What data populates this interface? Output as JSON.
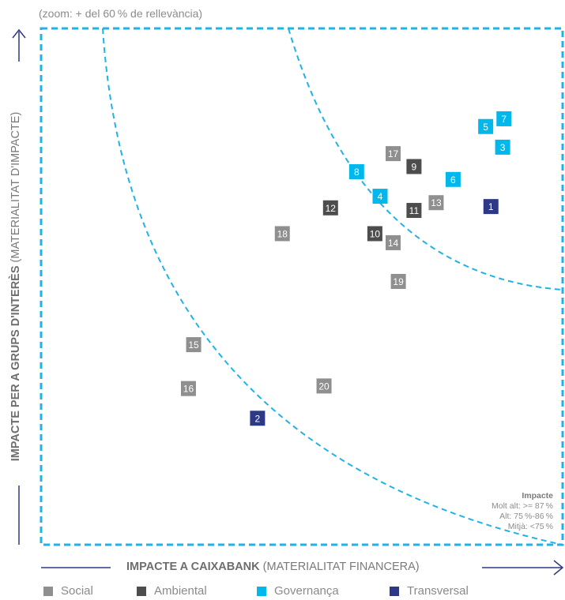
{
  "note": "(zoom: + del 60 % de rellevància)",
  "y_axis": {
    "strong": "IMPACTE PER A GRUPS D'INTERÈS",
    "light": "(MATERIALITAT D'IMPACTE)"
  },
  "x_axis": {
    "strong": "IMPACTE A CAIXABANK",
    "light": "(MATERIALITAT FINANCERA)"
  },
  "impact_legend": {
    "title": "Impacte",
    "lines": [
      "Molt alt: >= 87 %",
      "Alt: 75 %-86 %",
      "Mitjà: <75 %"
    ]
  },
  "legend": [
    {
      "key": "social",
      "label": "Social",
      "color": "#8f8f8f"
    },
    {
      "key": "ambiental",
      "label": "Ambiental",
      "color": "#4d4d4d"
    },
    {
      "key": "governanca",
      "label": "Governança",
      "color": "#00b8ec"
    },
    {
      "key": "transversal",
      "label": "Transversal",
      "color": "#2d3987"
    }
  ],
  "colors": {
    "frame": "#1fb3e8",
    "axis_arrow": "#2d3987",
    "threshold_curve": "#1fb3e8"
  },
  "chart_data": {
    "type": "scatter",
    "xlabel": "IMPACTE A CAIXABANK (MATERIALITAT FINANCERA)",
    "ylabel": "IMPACTE PER A GRUPS D'INTERÈS (MATERIALITAT D'IMPACTE)",
    "xlim": [
      60,
      100
    ],
    "ylim": [
      60,
      100
    ],
    "series": [
      {
        "name": "Social",
        "points": [
          {
            "label": "13",
            "x": 90.3,
            "y": 86.5
          },
          {
            "label": "14",
            "x": 87.0,
            "y": 83.4
          },
          {
            "label": "15",
            "x": 71.7,
            "y": 75.5
          },
          {
            "label": "16",
            "x": 71.3,
            "y": 72.1
          },
          {
            "label": "17",
            "x": 87.0,
            "y": 90.3
          },
          {
            "label": "18",
            "x": 78.5,
            "y": 84.1
          },
          {
            "label": "19",
            "x": 87.4,
            "y": 80.4
          },
          {
            "label": "20",
            "x": 81.7,
            "y": 72.3
          }
        ]
      },
      {
        "name": "Ambiental",
        "points": [
          {
            "label": "9",
            "x": 88.6,
            "y": 89.3
          },
          {
            "label": "10",
            "x": 85.6,
            "y": 84.1
          },
          {
            "label": "11",
            "x": 88.6,
            "y": 85.9
          },
          {
            "label": "12",
            "x": 82.2,
            "y": 86.1
          }
        ]
      },
      {
        "name": "Governança",
        "points": [
          {
            "label": "3",
            "x": 95.4,
            "y": 90.8
          },
          {
            "label": "4",
            "x": 86.0,
            "y": 87.0
          },
          {
            "label": "5",
            "x": 94.1,
            "y": 92.4
          },
          {
            "label": "6",
            "x": 91.6,
            "y": 88.3
          },
          {
            "label": "7",
            "x": 95.5,
            "y": 93.0
          },
          {
            "label": "8",
            "x": 84.2,
            "y": 88.9
          }
        ]
      },
      {
        "name": "Transversal",
        "points": [
          {
            "label": "1",
            "x": 94.5,
            "y": 86.2
          },
          {
            "label": "2",
            "x": 76.6,
            "y": 69.8
          }
        ]
      }
    ]
  }
}
